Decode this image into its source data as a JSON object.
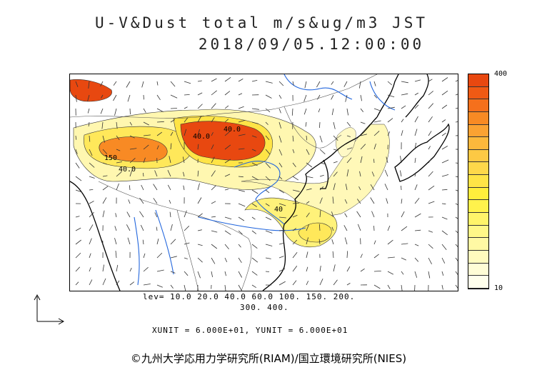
{
  "title": {
    "line1": "U-V&Dust total m/s&ug/m3 JST",
    "line2": "2018/09/05.12:00:00"
  },
  "colorbar": {
    "max_label": "400",
    "min_label": "10",
    "colors": [
      "#e84810",
      "#f05a14",
      "#f5701c",
      "#f88a24",
      "#fba232",
      "#fcb83c",
      "#fdc944",
      "#fed84a",
      "#ffe446",
      "#ffee3c",
      "#fff24c",
      "#fff46a",
      "#fff788",
      "#fff9a4",
      "#fffbbe",
      "#fffdd6",
      "#ffffec"
    ]
  },
  "levels": {
    "line1": "lev= 10.0 20.0 40.0 60.0 100. 150. 200.",
    "line2": "300. 400."
  },
  "units": "XUNIT = 6.000E+01, YUNIT = 6.000E+01",
  "copyright": "©九州大学応用力学研究所(RIAM)/国立環境研究所(NIES)",
  "contour_labels": [
    "150",
    "40.0",
    "40.0",
    "40",
    "40.0"
  ]
}
